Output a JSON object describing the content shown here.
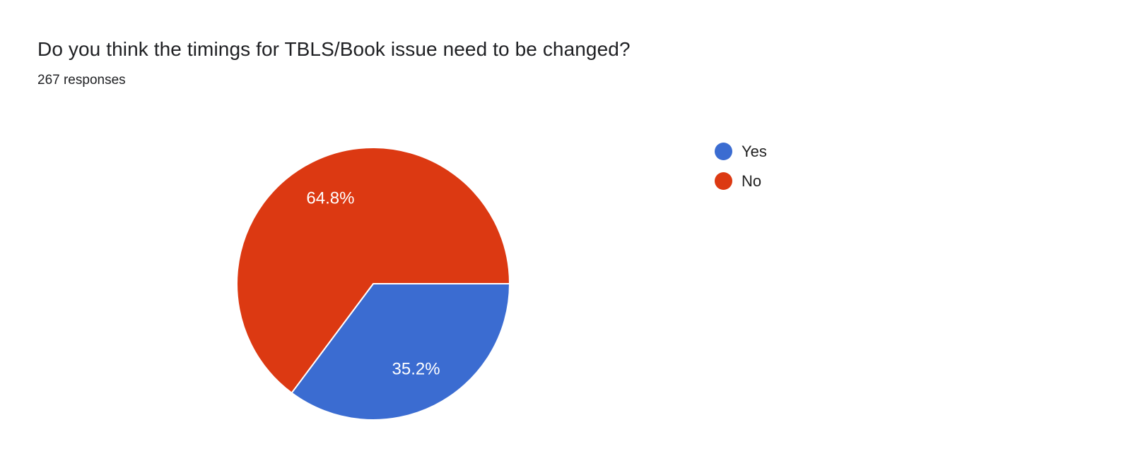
{
  "header": {
    "title": "Do you think the timings for TBLS/Book issue need to be changed?",
    "subtitle": "267 responses"
  },
  "chart_data": {
    "type": "pie",
    "title": "Do you think the timings for TBLS/Book issue need to be changed?",
    "subtitle": "267 responses",
    "categories": [
      "Yes",
      "No"
    ],
    "values": [
      35.2,
      64.8
    ],
    "unit": "%",
    "slice_labels": [
      "35.2%",
      "64.8%"
    ],
    "colors": [
      "#3b6cd1",
      "#dc3912"
    ],
    "slice_label_color": "#ffffff",
    "legend": {
      "position": "right",
      "entries": [
        {
          "label": "Yes",
          "color": "#3b6cd1"
        },
        {
          "label": "No",
          "color": "#dc3912"
        }
      ]
    },
    "start_angle_deg": 0,
    "direction": "clockwise",
    "background": "#ffffff"
  }
}
